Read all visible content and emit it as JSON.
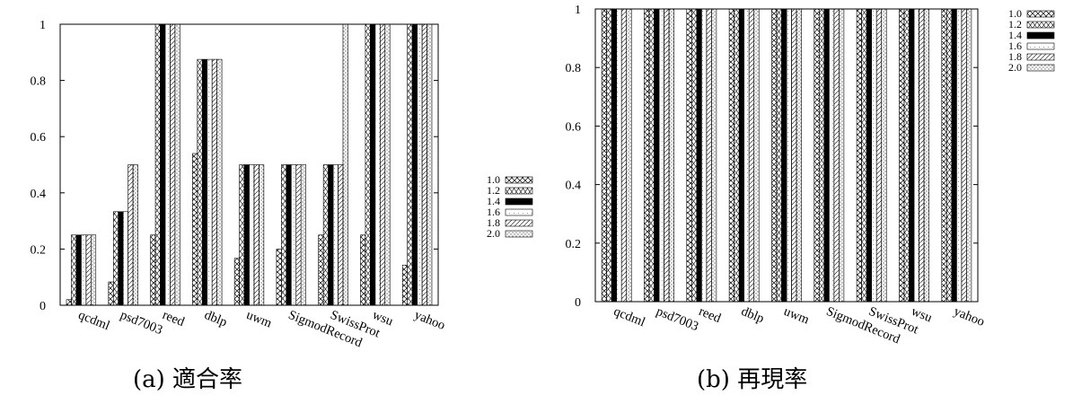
{
  "panels": [
    {
      "caption": "(a) 適合率",
      "chart_data": {
        "type": "bar",
        "title": "",
        "xlabel": "",
        "ylabel": "",
        "ylim": [
          0,
          1
        ],
        "yticks": [
          "0",
          "0.2",
          "0.4",
          "0.6",
          "0.8",
          "1"
        ],
        "categories": [
          "qcdml",
          "psd7003",
          "reed",
          "dblp",
          "uwm",
          "SigmodRecord",
          "SwissProt",
          "wsu",
          "yahoo"
        ],
        "legend_position": "top-right",
        "series": [
          {
            "name": "1.0",
            "values": [
              0.02,
              0.083,
              0.25,
              0.54,
              0.167,
              0.2,
              0.25,
              0.25,
              0.143
            ]
          },
          {
            "name": "1.2",
            "values": [
              0.25,
              0.333,
              1,
              0.875,
              0.5,
              0.5,
              0.5,
              1,
              1
            ]
          },
          {
            "name": "1.4",
            "values": [
              0.25,
              0.333,
              1,
              0.875,
              0.5,
              0.5,
              0.5,
              1,
              1
            ]
          },
          {
            "name": "1.6",
            "values": [
              0.25,
              0.333,
              1,
              0.875,
              0.5,
              0.5,
              0.5,
              1,
              1
            ]
          },
          {
            "name": "1.8",
            "values": [
              0.25,
              0.5,
              1,
              0.875,
              0.5,
              0.5,
              0.5,
              1,
              1
            ]
          },
          {
            "name": "2.0",
            "values": [
              0.25,
              0.5,
              1,
              0.875,
              0.5,
              0.5,
              1,
              1,
              1
            ]
          }
        ]
      }
    },
    {
      "caption": "(b) 再現率",
      "chart_data": {
        "type": "bar",
        "title": "",
        "xlabel": "",
        "ylabel": "",
        "ylim": [
          0,
          1
        ],
        "yticks": [
          "0",
          "0.2",
          "0.4",
          "0.6",
          "0.8",
          "1"
        ],
        "categories": [
          "qcdml",
          "psd7003",
          "reed",
          "dblp",
          "uwm",
          "SigmodRecord",
          "SwissProt",
          "wsu",
          "yahoo"
        ],
        "legend_position": "top-right",
        "series": [
          {
            "name": "1.0",
            "values": [
              1,
              1,
              1,
              1,
              1,
              1,
              1,
              1,
              1
            ]
          },
          {
            "name": "1.2",
            "values": [
              1,
              1,
              1,
              1,
              1,
              1,
              1,
              1,
              1
            ]
          },
          {
            "name": "1.4",
            "values": [
              1,
              1,
              1,
              1,
              1,
              1,
              1,
              1,
              1
            ]
          },
          {
            "name": "1.6",
            "values": [
              1,
              1,
              1,
              1,
              1,
              1,
              1,
              1,
              1
            ]
          },
          {
            "name": "1.8",
            "values": [
              1,
              1,
              1,
              1,
              1,
              1,
              1,
              1,
              1
            ]
          },
          {
            "name": "2.0",
            "values": [
              1,
              1,
              1,
              1,
              1,
              1,
              1,
              1,
              1
            ]
          }
        ]
      }
    }
  ]
}
